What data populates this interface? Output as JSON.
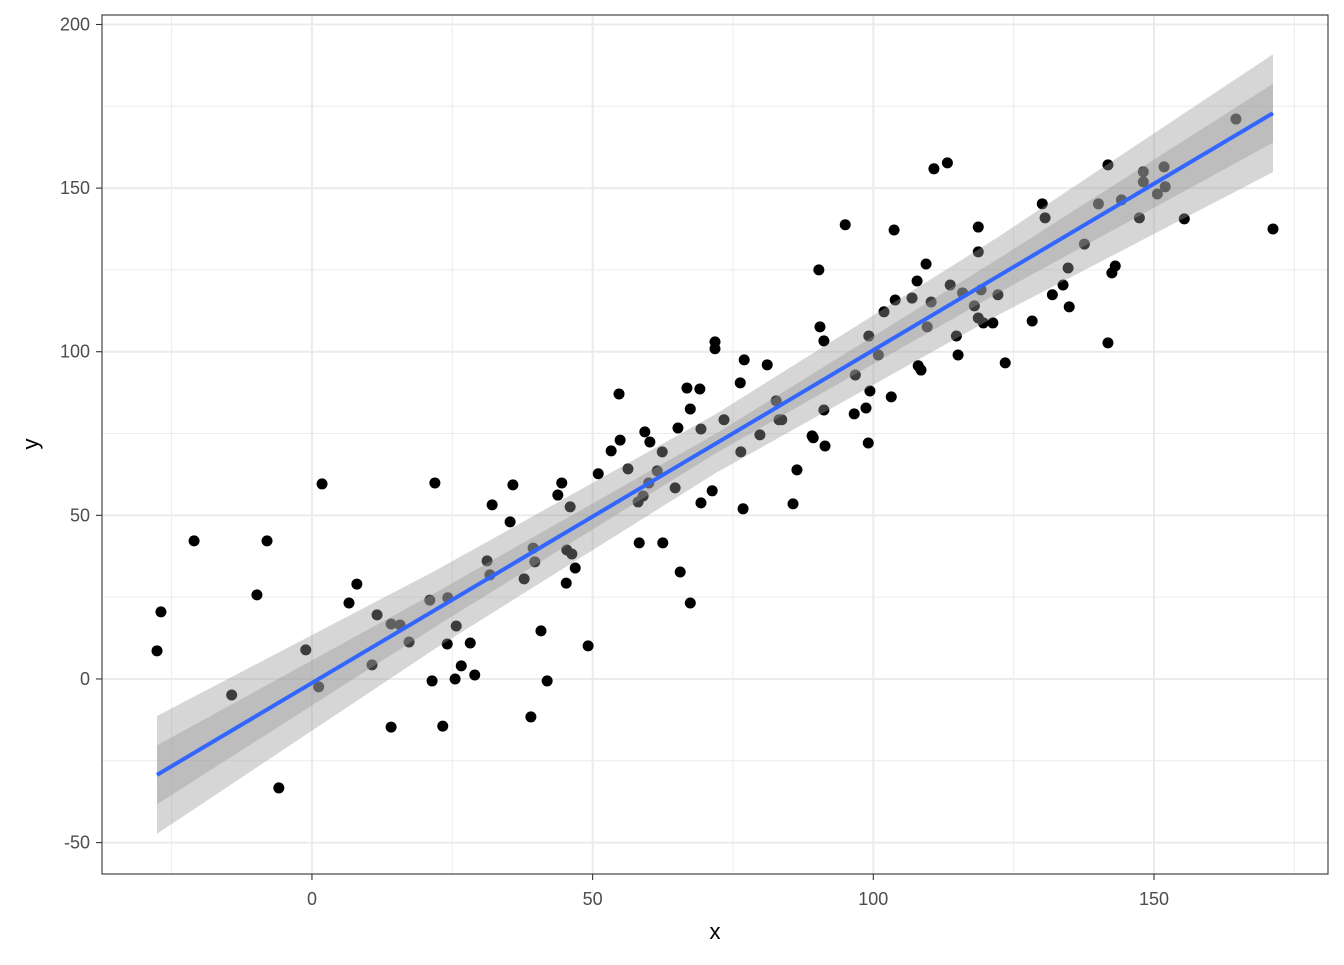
{
  "chart_data": {
    "type": "scatter",
    "title": "",
    "xlabel": "x",
    "ylabel": "y",
    "xlim": [
      -37.4,
      181.0
    ],
    "ylim": [
      -59.6,
      202.9
    ],
    "x_ticks": [
      0,
      50,
      100,
      150
    ],
    "y_ticks": [
      -50,
      0,
      50,
      100,
      150,
      200
    ],
    "x_minor": [
      -25,
      25,
      75,
      125,
      175
    ],
    "y_minor": [
      -25,
      25,
      75,
      125,
      175
    ],
    "grid": true,
    "colors": {
      "points": "#000000",
      "line": "#3366FF",
      "band": "#999999",
      "grid": "#EBEBEB",
      "border": "#333333"
    },
    "points": [
      [
        -27.6,
        8.6
      ],
      [
        -26.9,
        20.5
      ],
      [
        -21.0,
        42.2
      ],
      [
        -14.3,
        -4.9
      ],
      [
        -9.8,
        25.7
      ],
      [
        -8.0,
        42.2
      ],
      [
        -5.9,
        -33.3
      ],
      [
        -1.1,
        8.9
      ],
      [
        1.2,
        -2.4
      ],
      [
        1.8,
        59.6
      ],
      [
        6.6,
        23.2
      ],
      [
        8.0,
        29.0
      ],
      [
        10.7,
        4.3
      ],
      [
        11.6,
        19.6
      ],
      [
        14.1,
        16.8
      ],
      [
        14.1,
        -14.7
      ],
      [
        15.7,
        16.5
      ],
      [
        17.3,
        11.3
      ],
      [
        21.0,
        24.1
      ],
      [
        21.4,
        -0.6
      ],
      [
        21.9,
        59.9
      ],
      [
        23.3,
        -14.4
      ],
      [
        24.1,
        10.7
      ],
      [
        24.2,
        24.8
      ],
      [
        25.7,
        16.2
      ],
      [
        25.5,
        0.0
      ],
      [
        26.6,
        4.0
      ],
      [
        28.2,
        11.0
      ],
      [
        29.0,
        1.2
      ],
      [
        31.2,
        36.1
      ],
      [
        31.7,
        31.8
      ],
      [
        32.1,
        53.2
      ],
      [
        35.3,
        48.0
      ],
      [
        35.8,
        59.3
      ],
      [
        37.8,
        30.6
      ],
      [
        39.0,
        -11.6
      ],
      [
        39.4,
        40.0
      ],
      [
        39.7,
        35.8
      ],
      [
        40.8,
        14.7
      ],
      [
        41.9,
        -0.6
      ],
      [
        43.8,
        56.2
      ],
      [
        44.5,
        59.9
      ],
      [
        45.4,
        39.4
      ],
      [
        45.3,
        29.3
      ],
      [
        46.0,
        52.6
      ],
      [
        46.3,
        38.2
      ],
      [
        46.9,
        33.9
      ],
      [
        49.2,
        10.1
      ],
      [
        51.0,
        62.7
      ],
      [
        53.3,
        69.7
      ],
      [
        54.7,
        87.1
      ],
      [
        54.9,
        73.0
      ],
      [
        56.3,
        64.2
      ],
      [
        58.1,
        54.1
      ],
      [
        58.3,
        41.6
      ],
      [
        59.0,
        55.9
      ],
      [
        59.3,
        75.5
      ],
      [
        60.0,
        59.9
      ],
      [
        60.2,
        72.4
      ],
      [
        61.5,
        63.6
      ],
      [
        62.4,
        69.4
      ],
      [
        62.5,
        41.6
      ],
      [
        64.7,
        58.4
      ],
      [
        65.2,
        76.7
      ],
      [
        65.6,
        32.7
      ],
      [
        66.8,
        88.9
      ],
      [
        67.4,
        23.2
      ],
      [
        67.4,
        82.5
      ],
      [
        69.1,
        88.6
      ],
      [
        69.3,
        53.8
      ],
      [
        69.3,
        76.4
      ],
      [
        71.3,
        57.5
      ],
      [
        71.8,
        103.0
      ],
      [
        71.8,
        100.9
      ],
      [
        73.4,
        79.2
      ],
      [
        76.3,
        90.5
      ],
      [
        76.4,
        69.4
      ],
      [
        76.8,
        52.0
      ],
      [
        77.0,
        97.5
      ],
      [
        79.8,
        74.6
      ],
      [
        81.1,
        96.0
      ],
      [
        82.7,
        85.0
      ],
      [
        83.2,
        79.2
      ],
      [
        83.7,
        79.2
      ],
      [
        85.7,
        53.5
      ],
      [
        86.4,
        63.9
      ],
      [
        89.1,
        74.3
      ],
      [
        89.3,
        73.7
      ],
      [
        90.3,
        125.0
      ],
      [
        90.5,
        107.6
      ],
      [
        91.2,
        103.3
      ],
      [
        91.2,
        82.2
      ],
      [
        91.4,
        71.2
      ],
      [
        95.0,
        138.8
      ],
      [
        96.6,
        81.0
      ],
      [
        96.8,
        92.9
      ],
      [
        98.7,
        82.8
      ],
      [
        99.1,
        72.1
      ],
      [
        99.2,
        104.8
      ],
      [
        99.4,
        88.0
      ],
      [
        100.9,
        99.0
      ],
      [
        101.9,
        112.2
      ],
      [
        103.2,
        86.2
      ],
      [
        103.7,
        137.2
      ],
      [
        103.9,
        115.8
      ],
      [
        106.9,
        116.4
      ],
      [
        107.8,
        121.6
      ],
      [
        108.0,
        95.7
      ],
      [
        108.5,
        94.4
      ],
      [
        109.4,
        126.8
      ],
      [
        109.6,
        107.6
      ],
      [
        110.3,
        115.2
      ],
      [
        110.8,
        155.9
      ],
      [
        113.2,
        157.7
      ],
      [
        113.7,
        120.4
      ],
      [
        114.8,
        104.8
      ],
      [
        115.1,
        99.0
      ],
      [
        115.9,
        118.0
      ],
      [
        118.0,
        114.0
      ],
      [
        118.7,
        138.1
      ],
      [
        118.7,
        130.5
      ],
      [
        118.7,
        110.3
      ],
      [
        119.2,
        118.9
      ],
      [
        119.6,
        108.8
      ],
      [
        121.3,
        108.8
      ],
      [
        122.2,
        117.4
      ],
      [
        123.5,
        96.6
      ],
      [
        128.3,
        109.4
      ],
      [
        130.1,
        145.2
      ],
      [
        130.6,
        140.9
      ],
      [
        131.9,
        117.4
      ],
      [
        133.8,
        120.4
      ],
      [
        134.7,
        125.6
      ],
      [
        134.9,
        113.7
      ],
      [
        137.6,
        132.9
      ],
      [
        140.1,
        145.2
      ],
      [
        141.8,
        157.1
      ],
      [
        141.8,
        102.7
      ],
      [
        142.5,
        124.1
      ],
      [
        143.1,
        126.2
      ],
      [
        144.2,
        146.4
      ],
      [
        147.4,
        140.9
      ],
      [
        148.1,
        155.0
      ],
      [
        148.1,
        151.9
      ],
      [
        150.6,
        148.2
      ],
      [
        151.8,
        156.5
      ],
      [
        152.0,
        150.4
      ],
      [
        155.4,
        140.6
      ],
      [
        164.6,
        171.1
      ],
      [
        171.2,
        137.5
      ]
    ],
    "fit_line": {
      "x": [
        -27.6,
        171.2
      ],
      "y": [
        -29.3,
        172.9
      ]
    },
    "inner_band": {
      "x": [
        -27.6,
        22,
        72,
        122,
        171.2
      ],
      "lower": [
        -38.3,
        16.0,
        69.0,
        117.7,
        163.9
      ],
      "upper": [
        -20.3,
        26.4,
        75.0,
        128.1,
        181.9
      ]
    },
    "outer_band": {
      "x": [
        -27.6,
        22,
        72,
        122,
        171.2
      ],
      "lower": [
        -47.3,
        9.3,
        63.0,
        111.0,
        154.9
      ],
      "upper": [
        -11.3,
        33.1,
        81.0,
        134.8,
        190.9
      ]
    }
  }
}
